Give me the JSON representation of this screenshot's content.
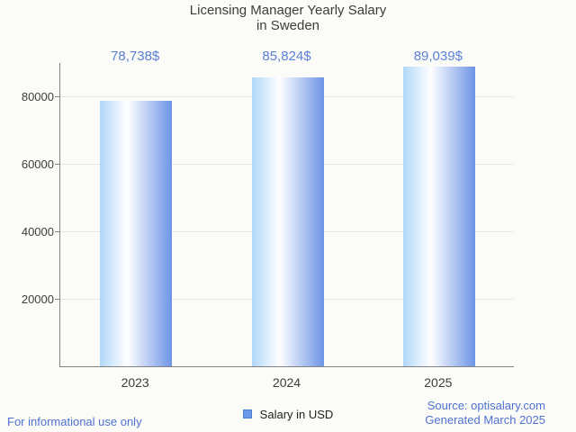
{
  "chart": {
    "title_line1": "Licensing Manager Yearly Salary",
    "title_line2": "in Sweden",
    "legend": {
      "label": "Salary in USD",
      "swatch_icon": "blue-square-icon"
    },
    "footer_left": "For informational use only",
    "footer_source": "Source: optisalary.com",
    "footer_generated": "Generated March 2025"
  },
  "chart_data": {
    "type": "bar",
    "title": "Licensing Manager Yearly Salary in Sweden",
    "categories": [
      "2023",
      "2024",
      "2025"
    ],
    "values": [
      78738,
      85824,
      89039
    ],
    "value_labels": [
      "78,738$",
      "85,824$",
      "89,039$"
    ],
    "series": [
      {
        "name": "Salary in USD",
        "values": [
          78738,
          85824,
          89039
        ]
      }
    ],
    "xlabel": "",
    "ylabel": "",
    "yticks": [
      20000,
      40000,
      60000,
      80000
    ],
    "ytick_labels": [
      "20000",
      "40000",
      "60000",
      "80000"
    ],
    "ylim": [
      0,
      90270
    ],
    "grid": true,
    "legend_position": "bottom",
    "colors": {
      "background": "#fbfbf8",
      "bar_gradient": [
        "#b0d7f8",
        "#ffffff",
        "#6d94e6"
      ],
      "bar_gradient_stops": [
        0,
        38,
        100
      ],
      "value_label": "#5b80d7",
      "footer_text": "#4f72d1",
      "axis_text": "#3d3d3d",
      "title_text": "#3d3d3d",
      "legend_swatch_fill": "#6d9ae8",
      "legend_swatch_border": "#4d80d0",
      "grid_line": "#e6e6e6",
      "axis_line": "#828282"
    }
  }
}
